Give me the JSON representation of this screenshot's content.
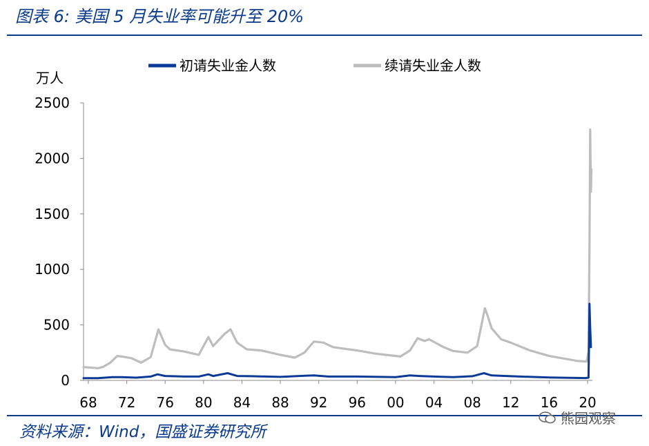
{
  "title": "图表 6:  美国 5 月失业率可能升至 20%",
  "source": "资料来源：Wind，国盛证券研究所",
  "watermark": "熊园观察",
  "colors": {
    "initial": "#0a3a96",
    "continuing": "#bdbdbd",
    "brand": "#0a3a8c"
  },
  "chart_data": {
    "type": "line",
    "ylabel": "万人",
    "ylim": [
      0,
      2500
    ],
    "yticks": [
      0,
      500,
      1000,
      1500,
      2000,
      2500
    ],
    "xlim": [
      1967.5,
      2020.5
    ],
    "xticks": [
      1968,
      1972,
      1976,
      1980,
      1984,
      1988,
      1992,
      1996,
      2000,
      2004,
      2008,
      2012,
      2016,
      2020
    ],
    "xtick_labels": [
      "68",
      "72",
      "76",
      "80",
      "84",
      "88",
      "92",
      "96",
      "00",
      "04",
      "08",
      "12",
      "16",
      "20"
    ],
    "legend_position": "top",
    "series": [
      {
        "name": "初请失业金人数",
        "color": "#0a3a96",
        "x": [
          1967.5,
          1969,
          1970.5,
          1971.5,
          1973,
          1974.5,
          1975.2,
          1976,
          1978,
          1979.5,
          1980.5,
          1981,
          1982.5,
          1983.5,
          1985,
          1988,
          1990.5,
          1991.5,
          1993,
          1996,
          2000,
          2001.5,
          2002.5,
          2004,
          2006,
          2008,
          2009.2,
          2010,
          2012,
          2016,
          2019.8,
          2020.1,
          2020.15,
          2020.2,
          2020.27,
          2020.35
        ],
        "y": [
          20,
          20,
          30,
          30,
          25,
          35,
          55,
          40,
          35,
          35,
          55,
          40,
          65,
          40,
          38,
          32,
          42,
          45,
          35,
          35,
          30,
          45,
          40,
          35,
          30,
          38,
          65,
          45,
          38,
          26,
          21,
          25,
          330,
          690,
          480,
          300
        ]
      },
      {
        "name": "续请失业金人数",
        "color": "#bdbdbd",
        "x": [
          1967.5,
          1969,
          1969.5,
          1970.3,
          1971,
          1971.5,
          1972.5,
          1973.5,
          1974.5,
          1975.3,
          1976,
          1976.5,
          1978,
          1979.5,
          1980.5,
          1981,
          1982.2,
          1982.8,
          1983.5,
          1984.5,
          1986,
          1988,
          1989.5,
          1990.5,
          1991.5,
          1992.5,
          1993.5,
          1996,
          1998,
          2000.5,
          2001.5,
          2002.3,
          2003,
          2003.5,
          2005,
          2006,
          2007.5,
          2008.5,
          2009.3,
          2009.6,
          2010,
          2011,
          2012,
          2014,
          2016,
          2019,
          2019.9,
          2020.1,
          2020.2,
          2020.27,
          2020.35,
          2020.4
        ],
        "y": [
          120,
          110,
          120,
          160,
          220,
          215,
          200,
          160,
          210,
          460,
          320,
          280,
          260,
          230,
          390,
          310,
          420,
          460,
          340,
          280,
          270,
          230,
          205,
          250,
          350,
          340,
          300,
          270,
          240,
          215,
          270,
          380,
          355,
          370,
          300,
          265,
          250,
          310,
          650,
          580,
          470,
          370,
          340,
          270,
          220,
          175,
          170,
          260,
          1200,
          2260,
          1700,
          1900
        ]
      }
    ]
  }
}
